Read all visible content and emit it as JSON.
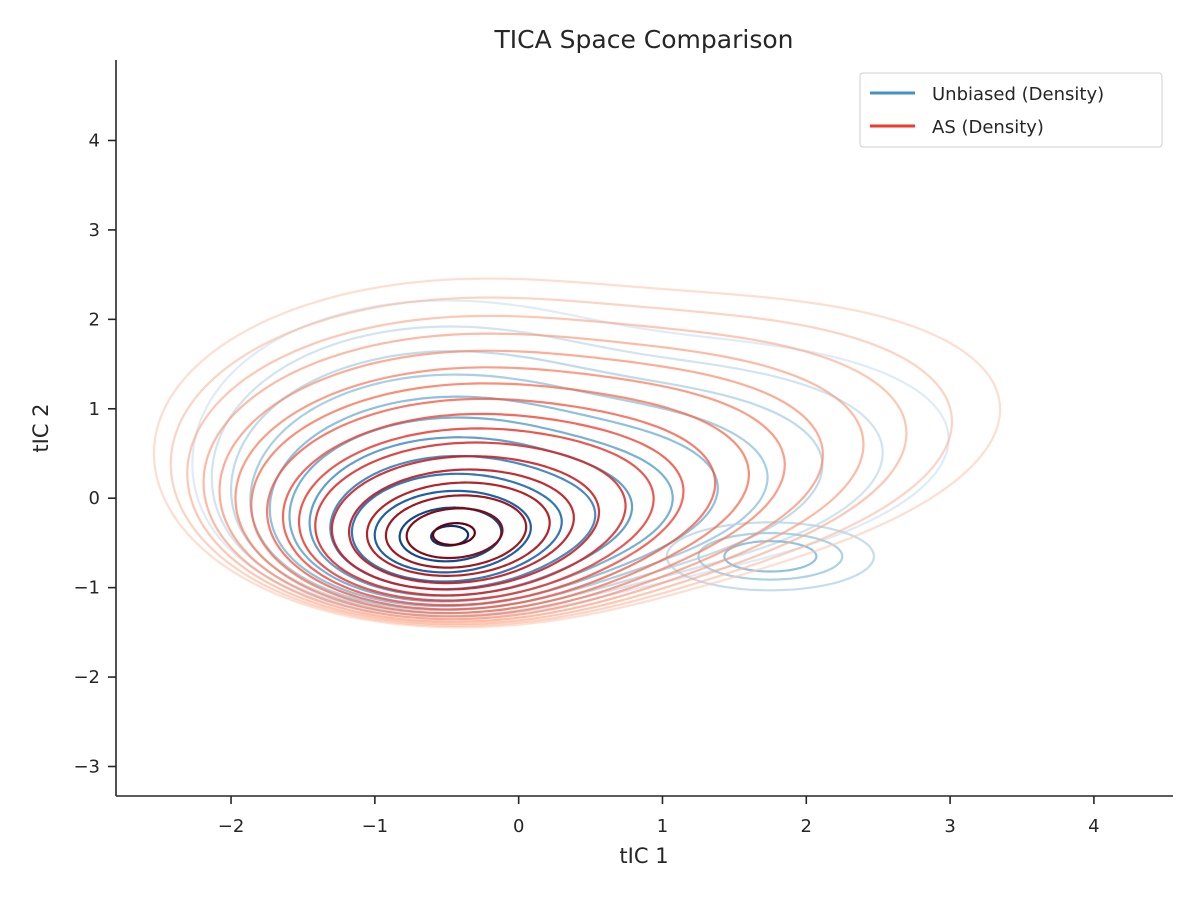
{
  "chart_data": {
    "type": "contour",
    "title": "TICA Space Comparison",
    "xlabel": "tIC 1",
    "ylabel": "tIC 2",
    "xlim": [
      -2.8,
      4.55
    ],
    "ylim": [
      -3.33,
      4.9
    ],
    "x_ticks": [
      -2,
      -1,
      0,
      1,
      2,
      3,
      4
    ],
    "y_ticks": [
      -3,
      -2,
      -1,
      0,
      1,
      2,
      3,
      4
    ],
    "x_tick_labels": [
      "−2",
      "−1",
      "0",
      "1",
      "2",
      "3",
      "4"
    ],
    "y_tick_labels": [
      "−3",
      "−2",
      "−1",
      "0",
      "1",
      "2",
      "3",
      "4"
    ],
    "grid": false,
    "legend_position": "top-right",
    "series": [
      {
        "name": "Unbiased (Density)",
        "color": "#4292c6",
        "colormap": "Blues",
        "peak": [
          -0.48,
          -0.42
        ],
        "secondary_peak": [
          1.75,
          -0.65
        ],
        "levels": 12
      },
      {
        "name": "AS (Density)",
        "color": "#ef3b2c",
        "colormap": "Reds",
        "peak": [
          -0.45,
          -0.4
        ],
        "levels": 17
      }
    ]
  }
}
